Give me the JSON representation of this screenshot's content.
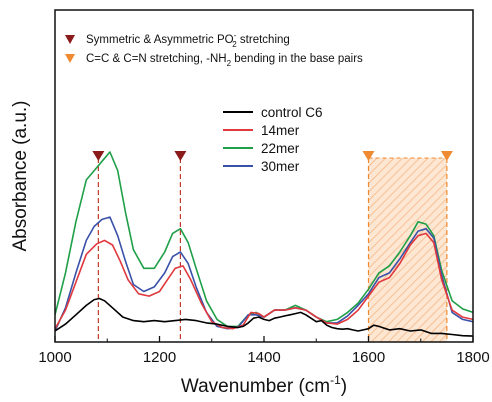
{
  "chart_data": {
    "type": "line",
    "xlabel": "Wavenumber (cm",
    "xlabel_superscript": "-1",
    "xlabel_suffix": ")",
    "ylabel": "Absorbance (a.u.)",
    "xlim": [
      1000,
      1800
    ],
    "ylim": [
      0,
      1
    ],
    "x_ticks": [
      1000,
      1200,
      1400,
      1600,
      1800
    ],
    "y_tick_labels": false,
    "grid": false,
    "legend_position": "center",
    "series": [
      {
        "name": "control C6",
        "color": "#000000",
        "x": [
          1000,
          1020,
          1040,
          1060,
          1075,
          1085,
          1095,
          1110,
          1130,
          1150,
          1170,
          1190,
          1210,
          1230,
          1250,
          1270,
          1290,
          1310,
          1330,
          1350,
          1360,
          1370,
          1380,
          1390,
          1400,
          1410,
          1420,
          1430,
          1440,
          1450,
          1460,
          1470,
          1480,
          1490,
          1500,
          1510,
          1520,
          1530,
          1540,
          1550,
          1560,
          1570,
          1580,
          1590,
          1600,
          1610,
          1620,
          1640,
          1660,
          1680,
          1700,
          1720,
          1740,
          1760,
          1780,
          1800
        ],
        "y": [
          0.03,
          0.06,
          0.1,
          0.14,
          0.165,
          0.17,
          0.16,
          0.13,
          0.09,
          0.075,
          0.07,
          0.075,
          0.07,
          0.075,
          0.08,
          0.075,
          0.065,
          0.06,
          0.05,
          0.045,
          0.05,
          0.065,
          0.085,
          0.09,
          0.08,
          0.075,
          0.085,
          0.09,
          0.095,
          0.1,
          0.105,
          0.11,
          0.1,
          0.085,
          0.07,
          0.075,
          0.055,
          0.045,
          0.04,
          0.038,
          0.04,
          0.035,
          0.03,
          0.035,
          0.04,
          0.055,
          0.05,
          0.035,
          0.04,
          0.03,
          0.035,
          0.02,
          0.02,
          0.015,
          0.01,
          0.008
        ]
      },
      {
        "name": "14mer",
        "color": "#e0393e",
        "x": [
          1000,
          1020,
          1040,
          1060,
          1080,
          1095,
          1110,
          1125,
          1140,
          1160,
          1180,
          1200,
          1215,
          1230,
          1245,
          1260,
          1280,
          1300,
          1320,
          1340,
          1360,
          1375,
          1390,
          1400,
          1420,
          1440,
          1460,
          1480,
          1500,
          1520,
          1540,
          1560,
          1580,
          1600,
          1620,
          1640,
          1660,
          1680,
          1695,
          1710,
          1725,
          1740,
          1760,
          1780,
          1800
        ],
        "y": [
          0.04,
          0.12,
          0.24,
          0.36,
          0.405,
          0.42,
          0.4,
          0.33,
          0.25,
          0.19,
          0.18,
          0.2,
          0.25,
          0.3,
          0.31,
          0.25,
          0.15,
          0.07,
          0.045,
          0.04,
          0.055,
          0.11,
          0.105,
          0.09,
          0.12,
          0.12,
          0.13,
          0.12,
          0.09,
          0.065,
          0.06,
          0.08,
          0.12,
          0.18,
          0.24,
          0.26,
          0.32,
          0.4,
          0.44,
          0.45,
          0.41,
          0.25,
          0.12,
          0.09,
          0.08
        ]
      },
      {
        "name": "22mer",
        "color": "#1fa048",
        "x": [
          1000,
          1020,
          1040,
          1060,
          1075,
          1090,
          1105,
          1120,
          1135,
          1150,
          1170,
          1190,
          1210,
          1225,
          1240,
          1255,
          1270,
          1290,
          1310,
          1330,
          1350,
          1370,
          1385,
          1400,
          1420,
          1440,
          1460,
          1480,
          1500,
          1520,
          1540,
          1560,
          1580,
          1600,
          1620,
          1640,
          1660,
          1680,
          1695,
          1710,
          1725,
          1740,
          1760,
          1780,
          1800
        ],
        "y": [
          0.1,
          0.28,
          0.5,
          0.68,
          0.72,
          0.76,
          0.8,
          0.72,
          0.54,
          0.38,
          0.3,
          0.3,
          0.37,
          0.45,
          0.47,
          0.41,
          0.3,
          0.16,
          0.08,
          0.05,
          0.05,
          0.1,
          0.11,
          0.09,
          0.12,
          0.12,
          0.14,
          0.12,
          0.09,
          0.07,
          0.08,
          0.11,
          0.15,
          0.21,
          0.28,
          0.31,
          0.37,
          0.44,
          0.5,
          0.49,
          0.44,
          0.29,
          0.16,
          0.125,
          0.11
        ]
      },
      {
        "name": "30mer",
        "color": "#3a51a8",
        "x": [
          1000,
          1020,
          1040,
          1060,
          1075,
          1090,
          1105,
          1120,
          1135,
          1150,
          1170,
          1190,
          1210,
          1225,
          1240,
          1255,
          1270,
          1290,
          1310,
          1330,
          1350,
          1370,
          1385,
          1400,
          1420,
          1440,
          1460,
          1480,
          1500,
          1520,
          1540,
          1560,
          1580,
          1600,
          1620,
          1640,
          1660,
          1680,
          1695,
          1710,
          1725,
          1740,
          1760,
          1780,
          1800
        ],
        "y": [
          0.03,
          0.13,
          0.28,
          0.42,
          0.48,
          0.51,
          0.52,
          0.44,
          0.33,
          0.23,
          0.2,
          0.22,
          0.28,
          0.35,
          0.37,
          0.32,
          0.22,
          0.11,
          0.05,
          0.04,
          0.045,
          0.1,
          0.1,
          0.09,
          0.12,
          0.12,
          0.13,
          0.12,
          0.09,
          0.065,
          0.065,
          0.095,
          0.14,
          0.19,
          0.26,
          0.28,
          0.34,
          0.41,
          0.46,
          0.47,
          0.43,
          0.27,
          0.11,
          0.08,
          0.07
        ]
      }
    ],
    "annotations": {
      "vlines_phosphate": [
        1083,
        1240
      ],
      "vlines_base": [
        1600,
        1750
      ],
      "shaded_band": [
        1600,
        1750
      ],
      "legend_items": [
        {
          "marker": "triangle-down",
          "color": "#8b1a1a",
          "text_main": "Symmetric & Asymmetric PO",
          "text_sub": "2",
          "text_sup": "-",
          "text_after": " stretching"
        },
        {
          "marker": "triangle-down",
          "color": "#f08a30",
          "text_main": "C=C & C=N stretching, -NH",
          "text_sub": "2",
          "text_sup": "",
          "text_after": " bending in the base pairs"
        }
      ]
    }
  }
}
